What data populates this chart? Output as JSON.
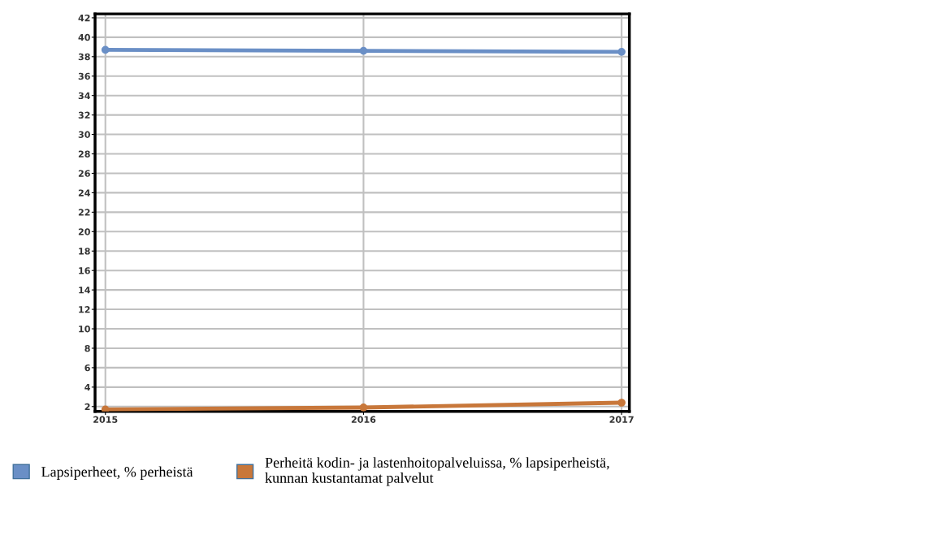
{
  "chart_data": {
    "type": "line",
    "x": [
      2015,
      2016,
      2017
    ],
    "series": [
      {
        "name": "Lapsiperheet, % perheistä",
        "color": "#6a8fc6",
        "values": [
          38.7,
          38.6,
          38.5
        ]
      },
      {
        "name": "Perheitä kodin- ja lastenhoitopalveluissa, % lapsiperheistä,\nkunnan kustantamat palvelut",
        "color": "#c8773a",
        "values": [
          1.7,
          1.9,
          2.4
        ]
      }
    ],
    "xlim": [
      2014.96,
      2017.03
    ],
    "xticks": [
      2015,
      2016,
      2017
    ],
    "ylim": [
      1.5,
      42.4
    ],
    "yticks": [
      2,
      4,
      6,
      8,
      10,
      12,
      14,
      16,
      18,
      20,
      22,
      24,
      26,
      28,
      30,
      32,
      34,
      36,
      38,
      40,
      42
    ],
    "grid": true,
    "legend": "bottom",
    "marker": "circle",
    "line_style": "solid"
  }
}
